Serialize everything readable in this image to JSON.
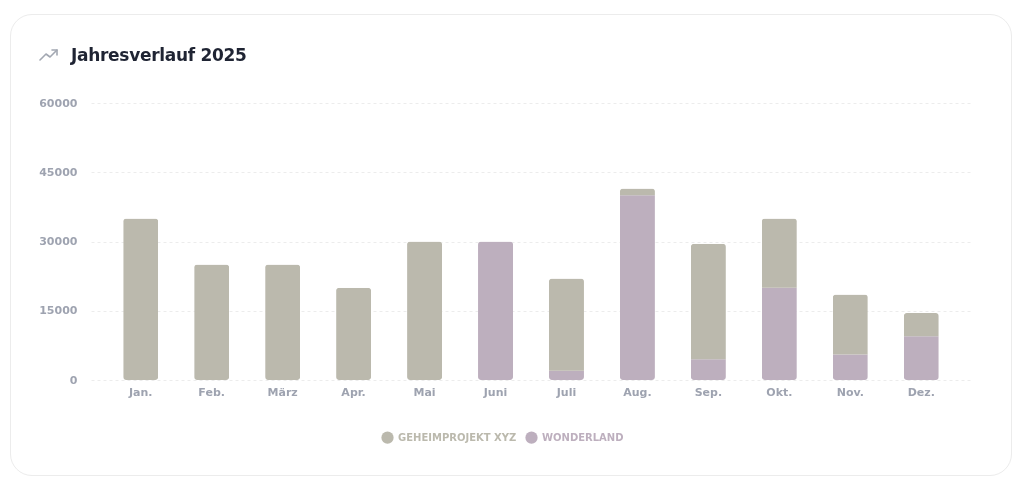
{
  "chart_data": {
    "type": "bar",
    "title": "Jahresverlauf 2025",
    "stacked": true,
    "categories": [
      "Jan.",
      "Feb.",
      "März",
      "Apr.",
      "Mai",
      "Juni",
      "Juli",
      "Aug.",
      "Sep.",
      "Okt.",
      "Nov.",
      "Dez."
    ],
    "series": [
      {
        "name": "WONDERLAND",
        "color": "#bdafbe",
        "values": [
          0,
          0,
          0,
          0,
          0,
          30000,
          2000,
          40000,
          4500,
          20000,
          5500,
          9500
        ]
      },
      {
        "name": "GEHEIMPROJEKT XYZ",
        "color": "#bbb9ad",
        "values": [
          35000,
          25000,
          25000,
          20000,
          30000,
          0,
          20000,
          1500,
          25000,
          15000,
          13000,
          5000
        ]
      }
    ],
    "ylim": [
      0,
      60000
    ],
    "yticks": [
      0,
      15000,
      30000,
      45000,
      60000
    ],
    "grid": "y",
    "legend": "bottom"
  }
}
